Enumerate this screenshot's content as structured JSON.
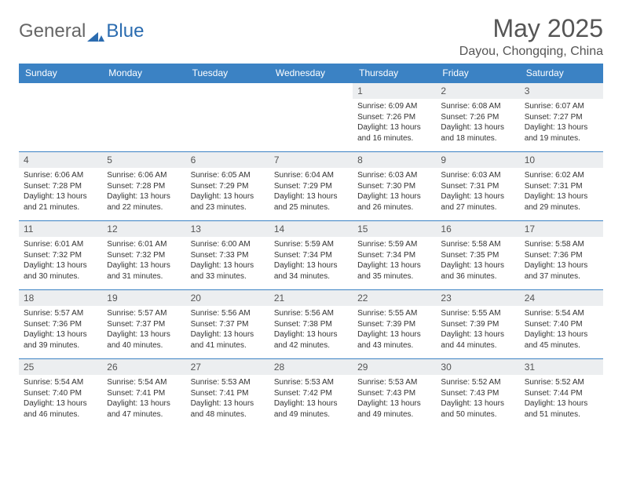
{
  "brand": {
    "part1": "General",
    "part2": "Blue"
  },
  "title": "May 2025",
  "location": "Dayou, Chongqing, China",
  "colors": {
    "header_bg": "#3b82c4",
    "header_text": "#ffffff",
    "daynum_bg": "#eceef0",
    "border": "#3b82c4",
    "brand_blue": "#2b6cb0"
  },
  "weekdays": [
    "Sunday",
    "Monday",
    "Tuesday",
    "Wednesday",
    "Thursday",
    "Friday",
    "Saturday"
  ],
  "weeks": [
    [
      null,
      null,
      null,
      null,
      {
        "n": "1",
        "sr": "6:09 AM",
        "ss": "7:26 PM",
        "dl": "13 hours and 16 minutes."
      },
      {
        "n": "2",
        "sr": "6:08 AM",
        "ss": "7:26 PM",
        "dl": "13 hours and 18 minutes."
      },
      {
        "n": "3",
        "sr": "6:07 AM",
        "ss": "7:27 PM",
        "dl": "13 hours and 19 minutes."
      }
    ],
    [
      {
        "n": "4",
        "sr": "6:06 AM",
        "ss": "7:28 PM",
        "dl": "13 hours and 21 minutes."
      },
      {
        "n": "5",
        "sr": "6:06 AM",
        "ss": "7:28 PM",
        "dl": "13 hours and 22 minutes."
      },
      {
        "n": "6",
        "sr": "6:05 AM",
        "ss": "7:29 PM",
        "dl": "13 hours and 23 minutes."
      },
      {
        "n": "7",
        "sr": "6:04 AM",
        "ss": "7:29 PM",
        "dl": "13 hours and 25 minutes."
      },
      {
        "n": "8",
        "sr": "6:03 AM",
        "ss": "7:30 PM",
        "dl": "13 hours and 26 minutes."
      },
      {
        "n": "9",
        "sr": "6:03 AM",
        "ss": "7:31 PM",
        "dl": "13 hours and 27 minutes."
      },
      {
        "n": "10",
        "sr": "6:02 AM",
        "ss": "7:31 PM",
        "dl": "13 hours and 29 minutes."
      }
    ],
    [
      {
        "n": "11",
        "sr": "6:01 AM",
        "ss": "7:32 PM",
        "dl": "13 hours and 30 minutes."
      },
      {
        "n": "12",
        "sr": "6:01 AM",
        "ss": "7:32 PM",
        "dl": "13 hours and 31 minutes."
      },
      {
        "n": "13",
        "sr": "6:00 AM",
        "ss": "7:33 PM",
        "dl": "13 hours and 33 minutes."
      },
      {
        "n": "14",
        "sr": "5:59 AM",
        "ss": "7:34 PM",
        "dl": "13 hours and 34 minutes."
      },
      {
        "n": "15",
        "sr": "5:59 AM",
        "ss": "7:34 PM",
        "dl": "13 hours and 35 minutes."
      },
      {
        "n": "16",
        "sr": "5:58 AM",
        "ss": "7:35 PM",
        "dl": "13 hours and 36 minutes."
      },
      {
        "n": "17",
        "sr": "5:58 AM",
        "ss": "7:36 PM",
        "dl": "13 hours and 37 minutes."
      }
    ],
    [
      {
        "n": "18",
        "sr": "5:57 AM",
        "ss": "7:36 PM",
        "dl": "13 hours and 39 minutes."
      },
      {
        "n": "19",
        "sr": "5:57 AM",
        "ss": "7:37 PM",
        "dl": "13 hours and 40 minutes."
      },
      {
        "n": "20",
        "sr": "5:56 AM",
        "ss": "7:37 PM",
        "dl": "13 hours and 41 minutes."
      },
      {
        "n": "21",
        "sr": "5:56 AM",
        "ss": "7:38 PM",
        "dl": "13 hours and 42 minutes."
      },
      {
        "n": "22",
        "sr": "5:55 AM",
        "ss": "7:39 PM",
        "dl": "13 hours and 43 minutes."
      },
      {
        "n": "23",
        "sr": "5:55 AM",
        "ss": "7:39 PM",
        "dl": "13 hours and 44 minutes."
      },
      {
        "n": "24",
        "sr": "5:54 AM",
        "ss": "7:40 PM",
        "dl": "13 hours and 45 minutes."
      }
    ],
    [
      {
        "n": "25",
        "sr": "5:54 AM",
        "ss": "7:40 PM",
        "dl": "13 hours and 46 minutes."
      },
      {
        "n": "26",
        "sr": "5:54 AM",
        "ss": "7:41 PM",
        "dl": "13 hours and 47 minutes."
      },
      {
        "n": "27",
        "sr": "5:53 AM",
        "ss": "7:41 PM",
        "dl": "13 hours and 48 minutes."
      },
      {
        "n": "28",
        "sr": "5:53 AM",
        "ss": "7:42 PM",
        "dl": "13 hours and 49 minutes."
      },
      {
        "n": "29",
        "sr": "5:53 AM",
        "ss": "7:43 PM",
        "dl": "13 hours and 49 minutes."
      },
      {
        "n": "30",
        "sr": "5:52 AM",
        "ss": "7:43 PM",
        "dl": "13 hours and 50 minutes."
      },
      {
        "n": "31",
        "sr": "5:52 AM",
        "ss": "7:44 PM",
        "dl": "13 hours and 51 minutes."
      }
    ]
  ],
  "labels": {
    "sunrise": "Sunrise: ",
    "sunset": "Sunset: ",
    "daylight": "Daylight: "
  }
}
